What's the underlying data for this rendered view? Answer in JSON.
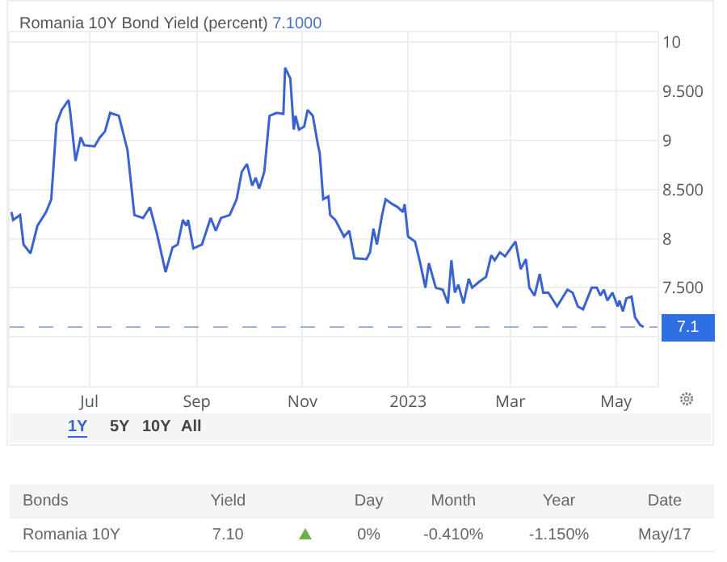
{
  "chart_data": {
    "type": "line",
    "title": "Romania 10Y Bond Yield (percent)",
    "subtitle": "7.1000",
    "color": "#3b63cf",
    "x": [
      "2022-05-17",
      "2022-05-18",
      "2022-05-22",
      "2022-05-24",
      "2022-05-28",
      "2022-06-01",
      "2022-06-06",
      "2022-06-09",
      "2022-06-12",
      "2022-06-15",
      "2022-06-19",
      "2022-06-20",
      "2022-06-23",
      "2022-06-26",
      "2022-06-28",
      "2022-07-04",
      "2022-07-07",
      "2022-07-10",
      "2022-07-13",
      "2022-07-18",
      "2022-07-23",
      "2022-07-27",
      "2022-08-01",
      "2022-08-05",
      "2022-08-09",
      "2022-08-14",
      "2022-08-18",
      "2022-08-21",
      "2022-08-24",
      "2022-08-26",
      "2022-08-27",
      "2022-08-30",
      "2022-09-04",
      "2022-09-09",
      "2022-09-12",
      "2022-09-15",
      "2022-09-20",
      "2022-09-24",
      "2022-09-27",
      "2022-09-30",
      "2022-10-03",
      "2022-10-05",
      "2022-10-07",
      "2022-10-10",
      "2022-10-13",
      "2022-10-17",
      "2022-10-21",
      "2022-10-22",
      "2022-10-25",
      "2022-10-27",
      "2022-10-28",
      "2022-10-30",
      "2022-11-02",
      "2022-11-04",
      "2022-11-07",
      "2022-11-10",
      "2022-11-11",
      "2022-11-13",
      "2022-11-16",
      "2022-11-17",
      "2022-11-20",
      "2022-11-25",
      "2022-11-28",
      "2022-12-01",
      "2022-12-08",
      "2022-12-10",
      "2022-12-12",
      "2022-12-14",
      "2022-12-17",
      "2022-12-19",
      "2022-12-23",
      "2022-12-26",
      "2022-12-29",
      "2022-12-30",
      "2023-01-01",
      "2023-01-05",
      "2023-01-08",
      "2023-01-11",
      "2023-01-13",
      "2023-01-17",
      "2023-01-21",
      "2023-01-24",
      "2023-01-26",
      "2023-01-28",
      "2023-01-30",
      "2023-02-02",
      "2023-02-05",
      "2023-02-07",
      "2023-02-11",
      "2023-02-15",
      "2023-02-18",
      "2023-02-20",
      "2023-02-23",
      "2023-02-26",
      "2023-03-04",
      "2023-03-07",
      "2023-03-10",
      "2023-03-12",
      "2023-03-15",
      "2023-03-18",
      "2023-03-20",
      "2023-03-23",
      "2023-03-28",
      "2023-04-03",
      "2023-04-06",
      "2023-04-09",
      "2023-04-12",
      "2023-04-17",
      "2023-04-20",
      "2023-04-22",
      "2023-04-24",
      "2023-04-26",
      "2023-04-29",
      "2023-05-02",
      "2023-05-03",
      "2023-05-05",
      "2023-05-07",
      "2023-05-10",
      "2023-05-12",
      "2023-05-15",
      "2023-05-17"
    ],
    "values": [
      8.27,
      8.19,
      8.24,
      7.94,
      7.85,
      8.13,
      8.27,
      8.4,
      9.17,
      9.31,
      9.41,
      9.28,
      8.79,
      9.03,
      8.95,
      8.94,
      9.03,
      9.09,
      9.28,
      9.25,
      8.9,
      8.24,
      8.21,
      8.32,
      8.05,
      7.66,
      7.91,
      7.94,
      8.19,
      8.13,
      8.19,
      7.9,
      7.94,
      8.21,
      8.08,
      8.21,
      8.24,
      8.4,
      8.68,
      8.76,
      8.54,
      8.62,
      8.51,
      8.68,
      9.25,
      9.28,
      9.27,
      9.74,
      9.63,
      9.11,
      9.25,
      9.11,
      9.14,
      9.31,
      9.25,
      8.95,
      8.87,
      8.4,
      8.43,
      8.24,
      8.19,
      8.02,
      8.08,
      7.8,
      7.79,
      7.86,
      8.1,
      7.94,
      8.24,
      8.4,
      8.35,
      8.32,
      8.27,
      8.35,
      8.02,
      7.97,
      7.75,
      7.5,
      7.75,
      7.5,
      7.48,
      7.34,
      7.78,
      7.45,
      7.53,
      7.34,
      7.59,
      7.5,
      7.56,
      7.61,
      7.83,
      7.78,
      7.86,
      7.82,
      7.97,
      7.69,
      7.79,
      7.5,
      7.42,
      7.64,
      7.45,
      7.45,
      7.31,
      7.48,
      7.45,
      7.31,
      7.28,
      7.5,
      7.5,
      7.42,
      7.48,
      7.37,
      7.45,
      7.31,
      7.37,
      7.26,
      7.39,
      7.41,
      7.2,
      7.12,
      7.1
    ],
    "xlim": [
      "2022-05-16",
      "2023-05-25"
    ],
    "xticks": [
      {
        "value": "2022-07-01",
        "label": "Jul"
      },
      {
        "value": "2022-09-01",
        "label": "Sep"
      },
      {
        "value": "2022-11-01",
        "label": "Nov"
      },
      {
        "value": "2023-01-01",
        "label": "2023"
      },
      {
        "value": "2023-03-01",
        "label": "Mar"
      },
      {
        "value": "2023-05-01",
        "label": "May"
      }
    ],
    "ylim": [
      6.5,
      10.1
    ],
    "yticks": [
      {
        "value": 7,
        "label": null
      },
      {
        "value": 7.5,
        "label": "7.500"
      },
      8,
      {
        "value": 8.5,
        "label": "8.500"
      },
      9,
      {
        "value": 9.5,
        "label": "9.500"
      },
      10
    ],
    "grid": true,
    "ref_lines": [
      {
        "axis": "y",
        "value": 7.1,
        "label": "7.1",
        "color": "#9db3d9",
        "line_style": "dashed"
      }
    ],
    "annotations": [
      "1Y",
      "5Y",
      "10Y",
      "All",
      "Bonds",
      "Yield",
      "Day",
      "Month",
      "Year",
      "Date",
      "Romania 10Y",
      "7.10",
      "0%",
      "-0.410%",
      "-1.150%",
      "May/17"
    ]
  }
}
